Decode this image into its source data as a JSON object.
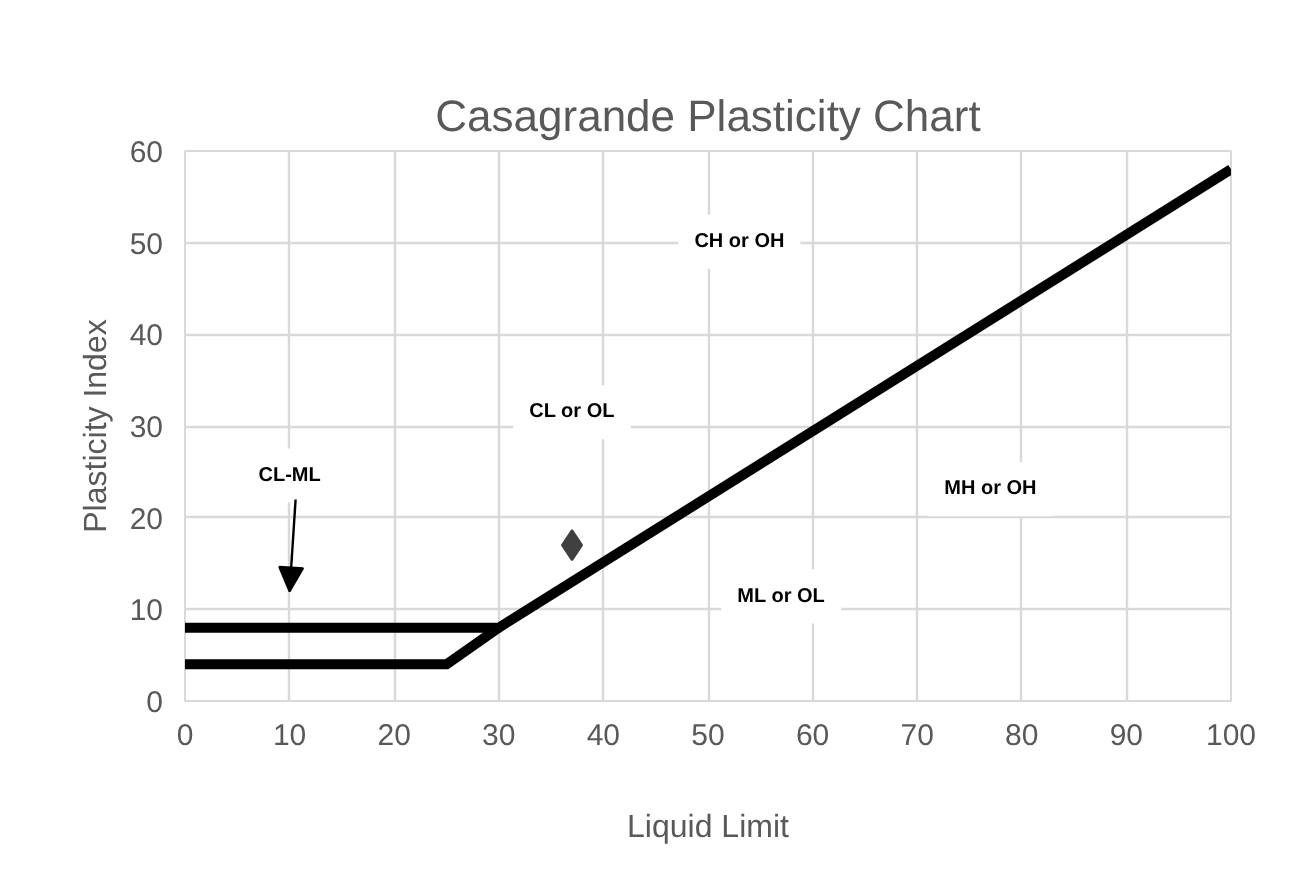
{
  "chart_data": {
    "type": "line",
    "title": "Casagrande Plasticity Chart",
    "xlabel": "Liquid Limit",
    "ylabel": "Plasticity Index",
    "series": [
      {
        "color": "#000000",
        "x": [
          0,
          30,
          100
        ],
        "values": [
          8,
          8,
          58
        ]
      },
      {
        "color": "#000000",
        "x": [
          0,
          25,
          30
        ],
        "values": [
          4,
          4,
          8
        ]
      },
      {
        "type": "scatter",
        "color": "#404040",
        "marker": "diamond",
        "x": [
          37
        ],
        "values": [
          17
        ]
      }
    ],
    "annotations": [
      "CH or OH",
      "CL or OL",
      "CL-ML",
      "MH or OH",
      "ML or OL"
    ],
    "xlim": [
      0,
      100
    ],
    "ylim": [
      0,
      60
    ],
    "xticks": [
      0,
      10,
      20,
      30,
      40,
      50,
      60,
      70,
      80,
      90,
      100
    ],
    "yticks": [
      0,
      10,
      20,
      30,
      40,
      50,
      60
    ],
    "grid": true,
    "line_style": "solid"
  }
}
